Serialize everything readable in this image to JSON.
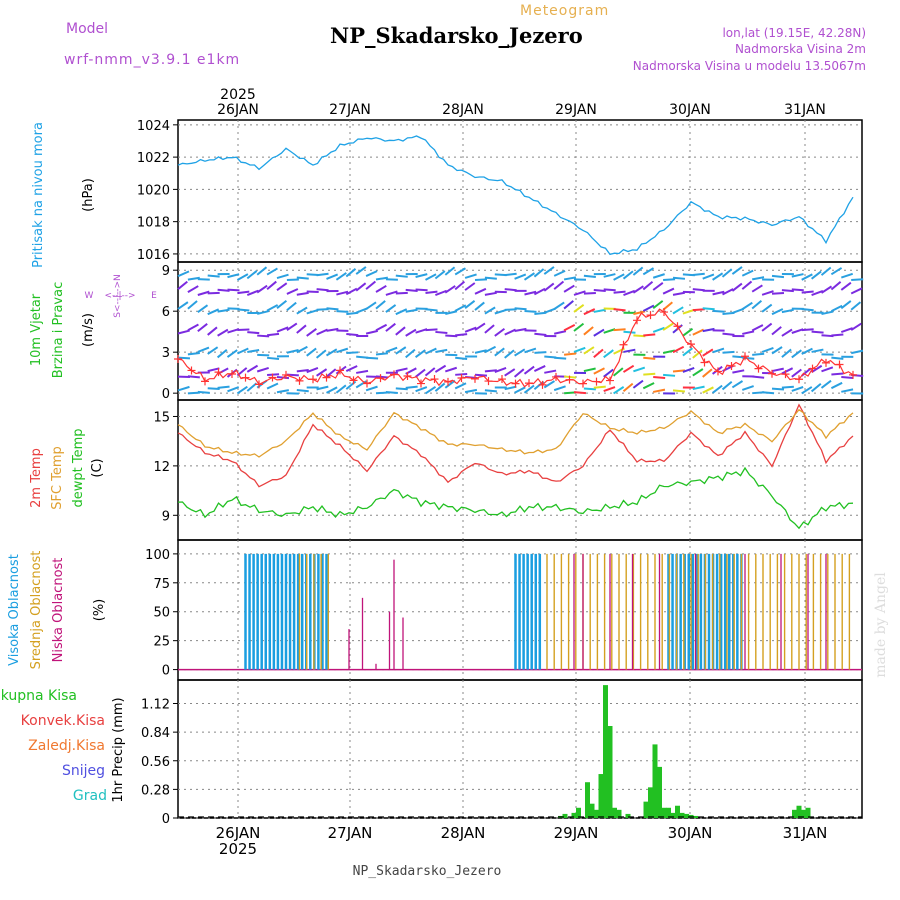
{
  "header": {
    "model_label": "Model",
    "model_name": "wrf-nmm_v3.9.1 e1km",
    "meteogram_label": "Meteogram",
    "station_title": "NP_Skadarsko_Jezero",
    "lonlat": "lon,lat (19.15E, 42.28N)",
    "elev_2m": "Nadmorska Visina 2m",
    "elev_model": "Nadmorska Visina u modelu 13.5067m",
    "watermark": "made by Angel",
    "footer_station": "NP_Skadarsko_Jezero"
  },
  "time_axis": {
    "year": "2025",
    "days": [
      "26JAN",
      "27JAN",
      "28JAN",
      "29JAN",
      "30JAN",
      "31JAN"
    ]
  },
  "colors": {
    "pressure": "#1fa2e6",
    "wind_speed": "#ff3333",
    "wind_speed_alt": "#000000",
    "t2m": "#e84040",
    "sfc": "#e0a030",
    "dewpt": "#22c022",
    "cloud_high": "#1a9ee0",
    "cloud_mid": "#d4a020",
    "cloud_low": "#c0147a",
    "precip": "#22c022",
    "precip_conv": "#e84040",
    "model_purple": "#b050d0",
    "grid": "#888888"
  },
  "panels": {
    "pressure": {
      "labels": [
        "Pritisak na nivou mora",
        "(hPa)"
      ],
      "ticks": [
        "1016",
        "1018",
        "1020",
        "1022",
        "1024"
      ]
    },
    "wind": {
      "labels": [
        "10m Vjetar",
        "Brzina i Pravac",
        "(m/s)"
      ],
      "compass": [
        "W",
        "<--|-->",
        "E",
        "S<--|-->N"
      ],
      "ticks": [
        "0",
        "3",
        "6",
        "9"
      ]
    },
    "temp": {
      "labels": [
        "2m Temp",
        "SFC Temp",
        "dewpt Temp",
        "(C)"
      ],
      "ticks": [
        "9",
        "12",
        "15"
      ]
    },
    "cloud": {
      "labels": [
        "Visoka Oblacnost",
        "Srednja Oblacnost",
        "Niska Oblacnost",
        "(%)"
      ],
      "ticks": [
        "0",
        "25",
        "50",
        "75",
        "100"
      ]
    },
    "precip": {
      "labels": [
        "1hr Precip (mm)"
      ],
      "legend": [
        "Ukupna Kisa",
        "Konvek.Kisa",
        "Zaledj.Kisa",
        "Snijeg",
        "Grad"
      ],
      "legend_colors": [
        "#22c022",
        "#e84040",
        "#f07830",
        "#5050e0",
        "#20c0c0"
      ],
      "ticks": [
        "0",
        "0.28",
        "0.56",
        "0.84",
        "1.12"
      ]
    }
  },
  "chart_data": [
    {
      "type": "line",
      "ylabel": "Pritisak na nivou mora (hPa)",
      "xlabel": "",
      "ylim": [
        1015.5,
        1024.3
      ],
      "x_unit": "hours from 25JAN 12:00",
      "x": [
        0,
        6,
        12,
        18,
        24,
        30,
        36,
        42,
        48,
        54,
        60,
        66,
        72,
        78,
        84,
        90,
        96,
        102,
        108,
        114,
        120,
        126,
        132,
        138,
        144,
        150
      ],
      "series": [
        {
          "values": [
            1021.5,
            1021.8,
            1022.0,
            1021.3,
            1022.5,
            1021.5,
            1022.7,
            1023.2,
            1023.0,
            1023.3,
            1021.5,
            1020.8,
            1020.5,
            1019.5,
            1018.5,
            1017.5,
            1016.0,
            1016.3,
            1017.5,
            1019.2,
            1018.3,
            1018.2,
            1017.8,
            1018.3,
            1016.8,
            1019.5
          ]
        }
      ]
    },
    {
      "type": "line",
      "ylabel": "10m Vjetar Brzina i Pravac (m/s)",
      "xlabel": "",
      "ylim": [
        -0.5,
        9.5
      ],
      "x_unit": "hours from 25JAN 12:00",
      "x": [
        0,
        6,
        12,
        18,
        24,
        30,
        36,
        42,
        48,
        54,
        60,
        66,
        72,
        78,
        84,
        90,
        96,
        102,
        108,
        114,
        120,
        126,
        132,
        138,
        144,
        150
      ],
      "series": [
        {
          "values": [
            2.5,
            1.0,
            1.5,
            0.8,
            1.2,
            1.0,
            1.4,
            0.8,
            1.3,
            1.0,
            0.8,
            1.2,
            0.8,
            0.7,
            1.0,
            0.8,
            1.0,
            5.5,
            6.0,
            3.5,
            1.5,
            2.5,
            1.5,
            1.0,
            2.5,
            1.3
          ]
        }
      ]
    },
    {
      "type": "line",
      "ylabel": "(C)",
      "xlabel": "",
      "ylim": [
        7.5,
        16
      ],
      "x_unit": "hours from 25JAN 12:00",
      "x": [
        0,
        6,
        12,
        18,
        24,
        30,
        36,
        42,
        48,
        54,
        60,
        66,
        72,
        78,
        84,
        90,
        96,
        102,
        108,
        114,
        120,
        126,
        132,
        138,
        144,
        150
      ],
      "series": [
        {
          "name": "2m Temp",
          "values": [
            14.0,
            12.8,
            12.3,
            10.8,
            11.4,
            14.5,
            13.2,
            11.7,
            13.8,
            12.7,
            11.0,
            12.2,
            11.5,
            11.7,
            11.0,
            12.0,
            14.2,
            12.3,
            12.3,
            14.0,
            12.6,
            14.0,
            12.0,
            15.7,
            12.3,
            13.8
          ]
        },
        {
          "name": "SFC Temp",
          "values": [
            14.5,
            13.2,
            12.8,
            12.6,
            13.5,
            15.2,
            13.8,
            13.0,
            15.2,
            14.3,
            13.3,
            13.3,
            13.0,
            12.8,
            13.0,
            15.2,
            14.3,
            14.0,
            14.3,
            15.3,
            14.0,
            14.5,
            13.5,
            15.4,
            13.8,
            15.2
          ]
        },
        {
          "name": "dewpt Temp",
          "values": [
            9.8,
            9.0,
            10.0,
            9.3,
            9.0,
            9.5,
            9.0,
            9.5,
            10.5,
            9.8,
            9.5,
            9.3,
            9.0,
            9.5,
            9.5,
            9.2,
            9.5,
            9.8,
            10.8,
            11.0,
            11.3,
            11.7,
            10.2,
            8.2,
            9.5,
            9.7
          ]
        }
      ]
    },
    {
      "type": "bar",
      "ylabel": "(%)",
      "xlabel": "",
      "ylim": [
        0,
        100
      ],
      "series": [
        {
          "name": "Visoka Oblacnost",
          "ranges_hours": [
            [
              15,
              33
            ],
            [
              75,
              81
            ],
            [
              109,
              126
            ]
          ],
          "values_pct": [
            100,
            100,
            100
          ]
        },
        {
          "name": "Srednja Oblacnost",
          "ranges_hours": [
            [
              27,
              34
            ],
            [
              82,
              150
            ]
          ],
          "values_pct": [
            100,
            100
          ]
        },
        {
          "name": "Niska Oblacnost",
          "spikes_hours": [
            38,
            41,
            44,
            47,
            48,
            50,
            88,
            90,
            96,
            101,
            107,
            115,
            126,
            134,
            140,
            144
          ],
          "values_pct": [
            35,
            62,
            5,
            50,
            95,
            45,
            100,
            100,
            100,
            100,
            100,
            100,
            100,
            100,
            100,
            100
          ]
        }
      ]
    },
    {
      "type": "bar",
      "ylabel": "1hr Precip (mm)",
      "xlabel": "",
      "ylim": [
        0,
        1.3
      ],
      "x_unit": "hours from 25JAN 12:00",
      "x": [
        85,
        86,
        88,
        89,
        91,
        92,
        93,
        94,
        95,
        96,
        97,
        98,
        100,
        104,
        105,
        106,
        107,
        108,
        109,
        110,
        111,
        112,
        113,
        114,
        115,
        137,
        138,
        139,
        140
      ],
      "values": [
        0.02,
        0.04,
        0.05,
        0.1,
        0.35,
        0.14,
        0.08,
        0.43,
        1.3,
        0.9,
        0.1,
        0.08,
        0.04,
        0.16,
        0.3,
        0.72,
        0.5,
        0.1,
        0.1,
        0.05,
        0.12,
        0.05,
        0.04,
        0.03,
        0.02,
        0.08,
        0.12,
        0.08,
        0.1
      ]
    }
  ]
}
